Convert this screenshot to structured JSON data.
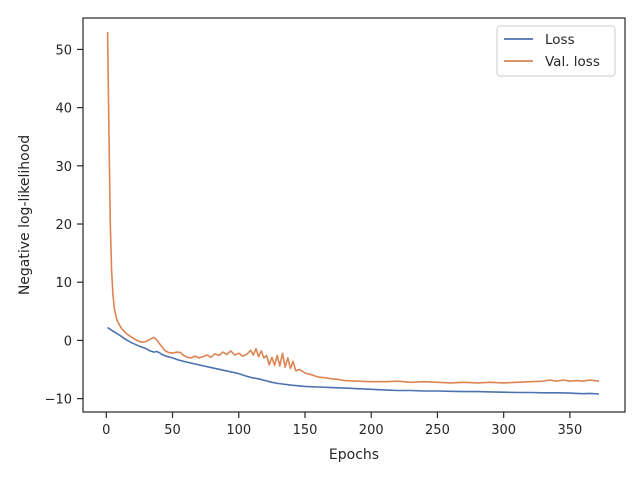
{
  "chart_data": {
    "type": "line",
    "title": "",
    "xlabel": "Epochs",
    "ylabel": "Negative log-likelihood",
    "xlim": [
      -17.6,
      391.6
    ],
    "ylim": [
      -12.3,
      55.4
    ],
    "xticks": [
      0,
      50,
      100,
      150,
      200,
      250,
      300,
      350
    ],
    "yticks": [
      -10,
      0,
      10,
      20,
      30,
      40,
      50
    ],
    "grid": false,
    "legend_position": "top-right",
    "series": [
      {
        "name": "Loss",
        "color": "#4c72b0",
        "x": [
          1,
          5,
          10,
          15,
          20,
          25,
          30,
          33,
          36,
          38,
          40,
          42,
          45,
          50,
          55,
          60,
          70,
          80,
          90,
          100,
          105,
          110,
          115,
          120,
          125,
          130,
          140,
          150,
          160,
          170,
          180,
          190,
          200,
          210,
          220,
          230,
          240,
          250,
          260,
          270,
          280,
          290,
          300,
          310,
          320,
          330,
          340,
          350,
          355,
          360,
          365,
          372
        ],
        "y": [
          2.2,
          1.6,
          0.9,
          0.1,
          -0.5,
          -1.0,
          -1.4,
          -1.8,
          -2.0,
          -1.9,
          -2.1,
          -2.4,
          -2.7,
          -3.0,
          -3.4,
          -3.7,
          -4.2,
          -4.7,
          -5.2,
          -5.7,
          -6.1,
          -6.4,
          -6.6,
          -6.9,
          -7.2,
          -7.4,
          -7.7,
          -7.9,
          -8.0,
          -8.1,
          -8.2,
          -8.3,
          -8.4,
          -8.5,
          -8.6,
          -8.6,
          -8.7,
          -8.7,
          -8.75,
          -8.8,
          -8.8,
          -8.85,
          -8.9,
          -8.95,
          -8.95,
          -9.0,
          -9.0,
          -9.05,
          -9.1,
          -9.15,
          -9.1,
          -9.2
        ]
      },
      {
        "name": "Val. loss",
        "color": "#dd8452",
        "x": [
          1,
          2,
          3,
          4,
          5,
          6,
          8,
          10,
          12,
          15,
          18,
          21,
          24,
          27,
          30,
          33,
          36,
          38,
          41,
          44,
          47,
          50,
          53,
          56,
          58,
          61,
          64,
          67,
          70,
          73,
          76,
          79,
          82,
          85,
          88,
          91,
          94,
          97,
          100,
          103,
          106,
          109,
          111,
          113,
          115,
          117,
          119,
          121,
          123,
          125,
          127,
          129,
          131,
          133,
          135,
          137,
          139,
          141,
          143,
          146,
          150,
          155,
          160,
          165,
          170,
          175,
          180,
          190,
          200,
          210,
          220,
          230,
          240,
          250,
          260,
          270,
          280,
          290,
          300,
          310,
          320,
          330,
          335,
          340,
          345,
          350,
          355,
          360,
          365,
          372
        ],
        "y": [
          53.0,
          35.0,
          20.0,
          12.0,
          8.0,
          5.5,
          3.5,
          2.6,
          1.9,
          1.2,
          0.7,
          0.3,
          -0.1,
          -0.3,
          -0.2,
          0.2,
          0.5,
          0.1,
          -0.8,
          -1.7,
          -2.1,
          -2.2,
          -2.0,
          -2.1,
          -2.5,
          -2.9,
          -3.0,
          -2.7,
          -3.0,
          -2.8,
          -2.5,
          -2.9,
          -2.3,
          -2.6,
          -2.0,
          -2.4,
          -1.8,
          -2.5,
          -2.2,
          -2.7,
          -2.4,
          -1.7,
          -2.5,
          -1.4,
          -2.8,
          -1.8,
          -3.0,
          -2.6,
          -4.2,
          -2.9,
          -4.3,
          -2.6,
          -4.4,
          -2.2,
          -4.6,
          -3.0,
          -4.8,
          -3.6,
          -5.2,
          -5.0,
          -5.6,
          -5.9,
          -6.3,
          -6.4,
          -6.6,
          -6.7,
          -6.9,
          -7.0,
          -7.1,
          -7.1,
          -7.0,
          -7.2,
          -7.1,
          -7.2,
          -7.3,
          -7.2,
          -7.3,
          -7.2,
          -7.3,
          -7.2,
          -7.1,
          -7.0,
          -6.8,
          -7.0,
          -6.8,
          -7.0,
          -6.9,
          -7.0,
          -6.8,
          -7.0
        ]
      }
    ]
  }
}
